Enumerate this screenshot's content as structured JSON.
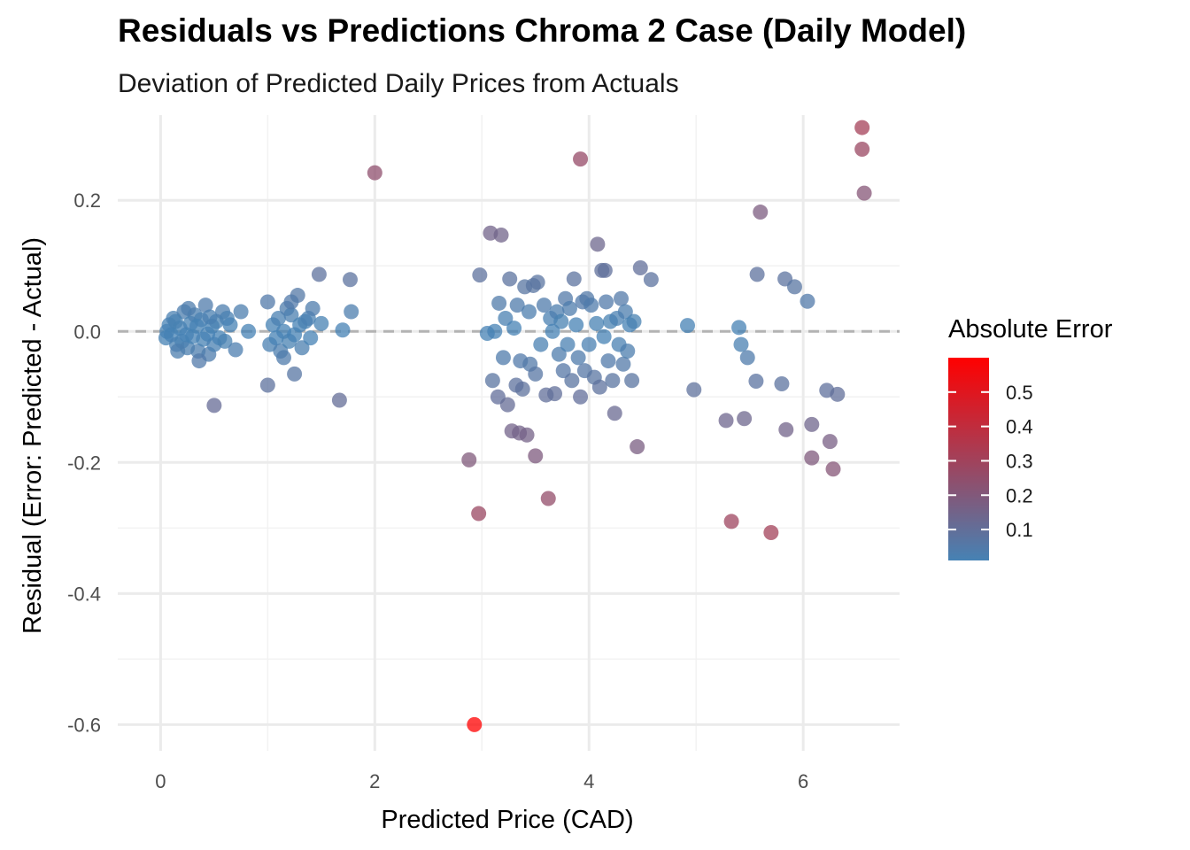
{
  "chart_data": {
    "type": "scatter",
    "title": "Residuals vs Predictions Chroma 2 Case (Daily Model)",
    "subtitle": "Deviation of Predicted Daily Prices from Actuals",
    "xlabel": "Predicted Price (CAD)",
    "ylabel": "Residual (Error: Predicted - Actual)",
    "xlim": [
      -0.4,
      6.9
    ],
    "ylim": [
      -0.64,
      0.33
    ],
    "x_ticks": [
      0,
      2,
      4,
      6
    ],
    "x_tick_labels": [
      "0",
      "2",
      "4",
      "6"
    ],
    "y_ticks": [
      0.2,
      0.0,
      -0.2,
      -0.4,
      -0.6
    ],
    "y_tick_labels": [
      "0.2",
      "0.0",
      "-0.2",
      "-0.4",
      "-0.6"
    ],
    "reference_line": {
      "y": 0,
      "style": "dashed",
      "color": "#b3b3b3"
    },
    "grid": true,
    "legend": {
      "title": "Absolute Error",
      "placement": "right",
      "range": [
        0.01,
        0.6
      ],
      "ticks": [
        0.5,
        0.4,
        0.3,
        0.2,
        0.1
      ],
      "tick_labels": [
        "0.5",
        "0.4",
        "0.3",
        "0.2",
        "0.1"
      ],
      "color_low": "#4682B4",
      "color_high": "#FF0000"
    },
    "color_mapping": "absolute error",
    "points": [
      {
        "x": 0.05,
        "y": -0.01
      },
      {
        "x": 0.08,
        "y": 0.01
      },
      {
        "x": 0.1,
        "y": -0.005
      },
      {
        "x": 0.12,
        "y": 0.02
      },
      {
        "x": 0.15,
        "y": -0.02
      },
      {
        "x": 0.18,
        "y": 0.005
      },
      {
        "x": 0.2,
        "y": -0.015
      },
      {
        "x": 0.22,
        "y": 0.03
      },
      {
        "x": 0.25,
        "y": -0.025
      },
      {
        "x": 0.28,
        "y": 0.012
      },
      {
        "x": 0.3,
        "y": -0.008
      },
      {
        "x": 0.32,
        "y": 0.025
      },
      {
        "x": 0.35,
        "y": -0.03
      },
      {
        "x": 0.38,
        "y": 0.018
      },
      {
        "x": 0.4,
        "y": -0.012
      },
      {
        "x": 0.42,
        "y": 0.04
      },
      {
        "x": 0.45,
        "y": -0.035
      },
      {
        "x": 0.48,
        "y": 0.008
      },
      {
        "x": 0.5,
        "y": -0.02
      },
      {
        "x": 0.52,
        "y": 0.015
      },
      {
        "x": 0.55,
        "y": -0.01
      },
      {
        "x": 0.58,
        "y": 0.03
      },
      {
        "x": 0.6,
        "y": -0.015
      },
      {
        "x": 0.62,
        "y": 0.02
      },
      {
        "x": 0.65,
        "y": 0.01
      },
      {
        "x": 0.7,
        "y": -0.028
      },
      {
        "x": 0.75,
        "y": 0.03
      },
      {
        "x": 0.82,
        "y": 0.0
      },
      {
        "x": 0.06,
        "y": 0.0
      },
      {
        "x": 0.14,
        "y": 0.015
      },
      {
        "x": 0.24,
        "y": -0.005
      },
      {
        "x": 0.34,
        "y": 0.008
      },
      {
        "x": 0.44,
        "y": -0.004
      },
      {
        "x": 0.36,
        "y": -0.045
      },
      {
        "x": 0.5,
        "y": -0.113
      },
      {
        "x": 0.26,
        "y": 0.035
      },
      {
        "x": 0.46,
        "y": 0.022
      },
      {
        "x": 0.16,
        "y": -0.03
      },
      {
        "x": 1.0,
        "y": 0.045
      },
      {
        "x": 1.02,
        "y": -0.02
      },
      {
        "x": 1.05,
        "y": 0.01
      },
      {
        "x": 1.0,
        "y": -0.082
      },
      {
        "x": 1.08,
        "y": -0.01
      },
      {
        "x": 1.1,
        "y": 0.02
      },
      {
        "x": 1.12,
        "y": -0.03
      },
      {
        "x": 1.15,
        "y": 0.0
      },
      {
        "x": 1.18,
        "y": 0.035
      },
      {
        "x": 1.2,
        "y": -0.015
      },
      {
        "x": 1.22,
        "y": 0.025
      },
      {
        "x": 1.25,
        "y": -0.005
      },
      {
        "x": 1.25,
        "y": -0.065
      },
      {
        "x": 1.28,
        "y": 0.055
      },
      {
        "x": 1.3,
        "y": 0.01
      },
      {
        "x": 1.32,
        "y": -0.025
      },
      {
        "x": 1.35,
        "y": 0.015
      },
      {
        "x": 1.38,
        "y": 0.02
      },
      {
        "x": 1.4,
        "y": -0.01
      },
      {
        "x": 1.42,
        "y": 0.035
      },
      {
        "x": 1.48,
        "y": 0.087
      },
      {
        "x": 1.5,
        "y": 0.012
      },
      {
        "x": 1.67,
        "y": -0.105
      },
      {
        "x": 1.7,
        "y": 0.002
      },
      {
        "x": 1.77,
        "y": 0.079
      },
      {
        "x": 1.78,
        "y": 0.03
      },
      {
        "x": 1.15,
        "y": -0.04
      },
      {
        "x": 1.22,
        "y": 0.045
      },
      {
        "x": 2.0,
        "y": 0.242
      },
      {
        "x": 2.88,
        "y": -0.196
      },
      {
        "x": 2.93,
        "y": -0.6
      },
      {
        "x": 2.97,
        "y": -0.278
      },
      {
        "x": 2.98,
        "y": 0.086
      },
      {
        "x": 3.05,
        "y": -0.003
      },
      {
        "x": 3.08,
        "y": 0.15
      },
      {
        "x": 3.1,
        "y": -0.075
      },
      {
        "x": 3.12,
        "y": 0.0
      },
      {
        "x": 3.15,
        "y": -0.1
      },
      {
        "x": 3.16,
        "y": 0.043
      },
      {
        "x": 3.18,
        "y": 0.147
      },
      {
        "x": 3.2,
        "y": -0.04
      },
      {
        "x": 3.22,
        "y": 0.02
      },
      {
        "x": 3.24,
        "y": -0.112
      },
      {
        "x": 3.26,
        "y": 0.08
      },
      {
        "x": 3.28,
        "y": -0.152
      },
      {
        "x": 3.3,
        "y": 0.005
      },
      {
        "x": 3.32,
        "y": -0.082
      },
      {
        "x": 3.33,
        "y": 0.04
      },
      {
        "x": 3.35,
        "y": -0.155
      },
      {
        "x": 3.36,
        "y": -0.045
      },
      {
        "x": 3.38,
        "y": -0.088
      },
      {
        "x": 3.4,
        "y": 0.068
      },
      {
        "x": 3.42,
        "y": -0.158
      },
      {
        "x": 3.44,
        "y": 0.03
      },
      {
        "x": 3.45,
        "y": -0.05
      },
      {
        "x": 3.48,
        "y": 0.07
      },
      {
        "x": 3.5,
        "y": -0.065
      },
      {
        "x": 3.5,
        "y": -0.19
      },
      {
        "x": 3.52,
        "y": 0.075
      },
      {
        "x": 3.55,
        "y": -0.02
      },
      {
        "x": 3.58,
        "y": 0.04
      },
      {
        "x": 3.6,
        "y": -0.097
      },
      {
        "x": 3.62,
        "y": -0.255
      },
      {
        "x": 3.64,
        "y": 0.02
      },
      {
        "x": 3.66,
        "y": 0.0
      },
      {
        "x": 3.68,
        "y": -0.095
      },
      {
        "x": 3.7,
        "y": 0.03
      },
      {
        "x": 3.72,
        "y": -0.035
      },
      {
        "x": 3.74,
        "y": 0.015
      },
      {
        "x": 3.76,
        "y": -0.06
      },
      {
        "x": 3.78,
        "y": 0.05
      },
      {
        "x": 3.8,
        "y": -0.02
      },
      {
        "x": 3.82,
        "y": 0.035
      },
      {
        "x": 3.84,
        "y": -0.075
      },
      {
        "x": 3.86,
        "y": 0.08
      },
      {
        "x": 3.88,
        "y": 0.01
      },
      {
        "x": 3.9,
        "y": -0.04
      },
      {
        "x": 3.92,
        "y": 0.263
      },
      {
        "x": 3.92,
        "y": -0.1
      },
      {
        "x": 3.94,
        "y": 0.045
      },
      {
        "x": 3.96,
        "y": -0.06
      },
      {
        "x": 3.98,
        "y": 0.05
      },
      {
        "x": 4.0,
        "y": -0.02
      },
      {
        "x": 4.02,
        "y": 0.04
      },
      {
        "x": 4.05,
        "y": -0.07
      },
      {
        "x": 4.07,
        "y": 0.012
      },
      {
        "x": 4.08,
        "y": 0.133
      },
      {
        "x": 4.1,
        "y": -0.085
      },
      {
        "x": 4.12,
        "y": 0.093
      },
      {
        "x": 4.14,
        "y": -0.008
      },
      {
        "x": 4.16,
        "y": 0.045
      },
      {
        "x": 4.18,
        "y": -0.045
      },
      {
        "x": 4.2,
        "y": 0.015
      },
      {
        "x": 4.22,
        "y": -0.075
      },
      {
        "x": 4.24,
        "y": -0.125
      },
      {
        "x": 4.26,
        "y": 0.02
      },
      {
        "x": 4.28,
        "y": -0.02
      },
      {
        "x": 4.3,
        "y": 0.05
      },
      {
        "x": 4.32,
        "y": -0.05
      },
      {
        "x": 4.34,
        "y": 0.03
      },
      {
        "x": 4.36,
        "y": -0.03
      },
      {
        "x": 4.38,
        "y": 0.01
      },
      {
        "x": 4.4,
        "y": -0.075
      },
      {
        "x": 4.42,
        "y": 0.015
      },
      {
        "x": 4.45,
        "y": -0.176
      },
      {
        "x": 4.48,
        "y": 0.097
      },
      {
        "x": 4.58,
        "y": 0.079
      },
      {
        "x": 4.15,
        "y": 0.093
      },
      {
        "x": 4.92,
        "y": 0.009
      },
      {
        "x": 4.98,
        "y": -0.089
      },
      {
        "x": 5.28,
        "y": -0.136
      },
      {
        "x": 5.33,
        "y": -0.29
      },
      {
        "x": 5.4,
        "y": 0.006
      },
      {
        "x": 5.42,
        "y": -0.02
      },
      {
        "x": 5.45,
        "y": -0.133
      },
      {
        "x": 5.48,
        "y": -0.04
      },
      {
        "x": 5.56,
        "y": -0.076
      },
      {
        "x": 5.57,
        "y": 0.087
      },
      {
        "x": 5.6,
        "y": 0.182
      },
      {
        "x": 5.7,
        "y": -0.307
      },
      {
        "x": 5.8,
        "y": -0.08
      },
      {
        "x": 5.83,
        "y": 0.08
      },
      {
        "x": 5.84,
        "y": -0.15
      },
      {
        "x": 5.92,
        "y": 0.068
      },
      {
        "x": 6.04,
        "y": 0.046
      },
      {
        "x": 6.08,
        "y": -0.142
      },
      {
        "x": 6.08,
        "y": -0.193
      },
      {
        "x": 6.22,
        "y": -0.09
      },
      {
        "x": 6.25,
        "y": -0.168
      },
      {
        "x": 6.28,
        "y": -0.21
      },
      {
        "x": 6.32,
        "y": -0.096
      },
      {
        "x": 6.55,
        "y": 0.311
      },
      {
        "x": 6.55,
        "y": 0.278
      },
      {
        "x": 6.57,
        "y": 0.211
      }
    ]
  }
}
